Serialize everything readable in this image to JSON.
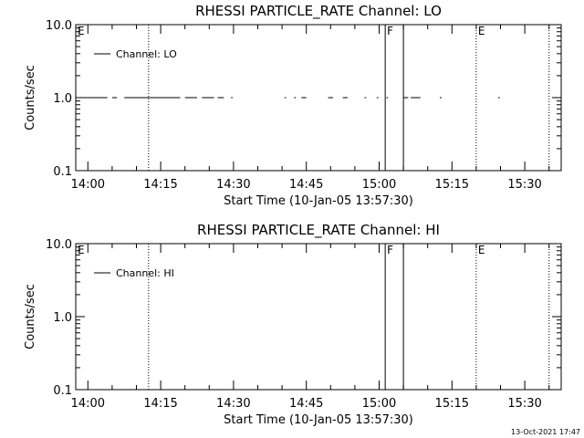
{
  "chart_data": [
    {
      "type": "line",
      "title": "RHESSI PARTICLE_RATE Channel: LO",
      "xlabel": "Start Time (10-Jan-05 13:57:30)",
      "ylabel": "Counts/sec",
      "y_scale": "log",
      "ylim": [
        0.1,
        10.0
      ],
      "xlim": [
        "13:57:30",
        "15:37:30"
      ],
      "grid": false,
      "legend_placement": "top-left",
      "x_tick_labels": [
        "14:00",
        "14:15",
        "14:30",
        "14:45",
        "15:00",
        "15:15",
        "15:30"
      ],
      "y_tick_labels": [
        "0.1",
        "1.0",
        "10.0"
      ],
      "series": [
        {
          "name": "Channel: LO",
          "segments": [
            [
              [
                "13:57:30",
                1.0
              ],
              [
                "14:04:00",
                1.0
              ]
            ],
            [
              [
                "14:05:00",
                1.0
              ],
              [
                "14:06:00",
                1.0
              ]
            ],
            [
              [
                "14:07:30",
                1.0
              ],
              [
                "14:19:00",
                1.0
              ]
            ],
            [
              [
                "14:20:00",
                1.0
              ],
              [
                "14:22:30",
                1.0
              ]
            ],
            [
              [
                "14:23:30",
                1.0
              ],
              [
                "14:26:00",
                1.0
              ]
            ],
            [
              [
                "14:26:45",
                1.0
              ],
              [
                "14:28:00",
                1.0
              ]
            ],
            [
              [
                "14:29:30",
                1.0
              ],
              [
                "14:29:50",
                1.0
              ]
            ],
            [
              [
                "14:40:30",
                1.0
              ],
              [
                "14:40:50",
                1.0
              ]
            ],
            [
              [
                "14:42:30",
                1.0
              ],
              [
                "14:42:50",
                1.0
              ]
            ],
            [
              [
                "14:44:00",
                1.0
              ],
              [
                "14:45:00",
                1.0
              ]
            ],
            [
              [
                "14:49:30",
                1.0
              ],
              [
                "14:50:30",
                1.0
              ]
            ],
            [
              [
                "14:52:30",
                1.0
              ],
              [
                "14:53:30",
                1.0
              ]
            ],
            [
              [
                "14:57:00",
                1.0
              ],
              [
                "14:57:20",
                1.0
              ]
            ],
            [
              [
                "14:59:30",
                1.0
              ],
              [
                "14:59:50",
                1.0
              ]
            ],
            [
              [
                "15:01:30",
                1.0
              ],
              [
                "15:01:50",
                1.0
              ]
            ],
            [
              [
                "15:05:00",
                1.0
              ],
              [
                "15:06:00",
                1.0
              ]
            ],
            [
              [
                "15:06:30",
                1.0
              ],
              [
                "15:08:30",
                1.0
              ]
            ],
            [
              [
                "15:12:30",
                1.0
              ],
              [
                "15:12:50",
                1.0
              ]
            ],
            [
              [
                "15:24:30",
                1.0
              ],
              [
                "15:24:50",
                1.0
              ]
            ]
          ]
        }
      ],
      "vertical_lines": [
        {
          "x": "14:12:30",
          "style": "dotted"
        },
        {
          "x": "15:01:15",
          "style": "solid"
        },
        {
          "x": "15:05:00",
          "style": "solid"
        },
        {
          "x": "15:20:00",
          "style": "dotted"
        },
        {
          "x": "15:35:00",
          "style": "dotted"
        }
      ],
      "annotations": [
        {
          "text": "E",
          "x": "13:57:30"
        },
        {
          "text": "F",
          "x": "15:01:15"
        },
        {
          "text": "E",
          "x": "15:20:00"
        }
      ]
    },
    {
      "type": "line",
      "title": "RHESSI PARTICLE_RATE Channel: HI",
      "xlabel": "Start Time (10-Jan-05 13:57:30)",
      "ylabel": "Counts/sec",
      "y_scale": "log",
      "ylim": [
        0.1,
        10.0
      ],
      "xlim": [
        "13:57:30",
        "15:37:30"
      ],
      "grid": false,
      "legend_placement": "top-left",
      "x_tick_labels": [
        "14:00",
        "14:15",
        "14:30",
        "14:45",
        "15:00",
        "15:15",
        "15:30"
      ],
      "y_tick_labels": [
        "0.1",
        "1.0",
        "10.0"
      ],
      "series": [
        {
          "name": "Channel: HI",
          "segments": []
        }
      ],
      "vertical_lines": [
        {
          "x": "14:12:30",
          "style": "dotted"
        },
        {
          "x": "15:01:15",
          "style": "solid"
        },
        {
          "x": "15:05:00",
          "style": "solid"
        },
        {
          "x": "15:20:00",
          "style": "dotted"
        },
        {
          "x": "15:35:00",
          "style": "dotted"
        }
      ],
      "annotations": [
        {
          "text": "E",
          "x": "13:57:30"
        },
        {
          "text": "F",
          "x": "15:01:15"
        },
        {
          "text": "E",
          "x": "15:20:00"
        }
      ]
    }
  ],
  "footer": {
    "timestamp": "13-Oct-2021 17:47"
  }
}
